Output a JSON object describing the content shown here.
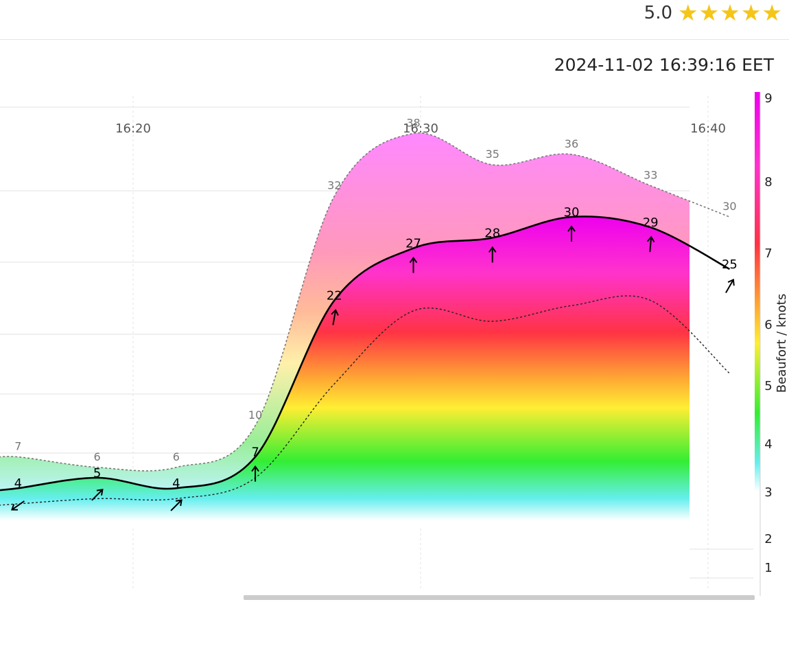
{
  "header": {
    "rating": "5.0",
    "stars": 5,
    "star_icon": "star-icon",
    "star_color": "#f5c518"
  },
  "timestamp": "2024-11-02 16:39:16 EET",
  "colorbar": {
    "label": "Beaufort / knots",
    "ticks": [
      "1",
      "2",
      "3",
      "4",
      "5",
      "6",
      "7",
      "8",
      "9"
    ]
  },
  "chart_data": {
    "type": "area",
    "x_unit": "time (HH:MM)",
    "xtick_labels": [
      "16:20",
      "16:30",
      "16:40"
    ],
    "xlim": [
      "16:14",
      "16:41"
    ],
    "ylim_knots": [
      0,
      40
    ],
    "series": [
      {
        "times": [
          "16:16",
          "16:18:45",
          "16:21:30",
          "16:24:15",
          "16:27",
          "16:29:45",
          "16:32:30",
          "16:35:15",
          "16:38",
          "16:40:45"
        ],
        "values": [
          7,
          6,
          6,
          10,
          32,
          38,
          35,
          36,
          33,
          30
        ],
        "labels": [
          "7",
          "6",
          "6",
          "10",
          "32",
          "38",
          "35",
          "36",
          "33",
          "30"
        ]
      },
      {
        "times": [
          "16:16",
          "16:18:45",
          "16:21:30",
          "16:24:15",
          "16:27",
          "16:29:45",
          "16:32:30",
          "16:35:15",
          "16:38",
          "16:40:45"
        ],
        "values": [
          4,
          5,
          4,
          7,
          22,
          27,
          28,
          30,
          29,
          25
        ],
        "labels": [
          "4",
          "5",
          "4",
          "7",
          "22",
          "27",
          "28",
          "30",
          "29",
          "25"
        ],
        "direction_deg": [
          235,
          45,
          45,
          0,
          10,
          0,
          0,
          0,
          5,
          30
        ]
      },
      {
        "times": [
          "16:16",
          "16:18:45",
          "16:21:30",
          "16:24:15",
          "16:27",
          "16:29:45",
          "16:32:30",
          "16:35:15",
          "16:38",
          "16:40:45"
        ],
        "values": [
          2.5,
          3,
          3,
          5,
          14,
          21,
          20,
          21.5,
          22,
          15
        ]
      }
    ]
  }
}
